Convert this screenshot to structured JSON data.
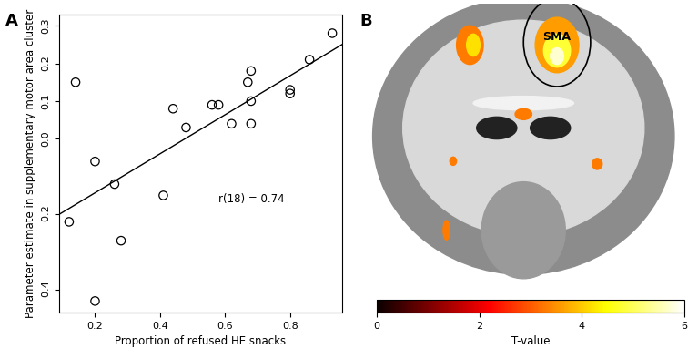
{
  "chart_data": [
    {
      "type": "scatter",
      "panel_label": "A",
      "x_label": "Proportion of refused HE snacks",
      "y_label": "Parameter estimate in supplementary motor area cluster",
      "annotation": "r(18) = 0.74",
      "x": [
        0.12,
        0.14,
        0.2,
        0.2,
        0.26,
        0.28,
        0.41,
        0.44,
        0.48,
        0.56,
        0.58,
        0.62,
        0.67,
        0.68,
        0.68,
        0.68,
        0.8,
        0.8,
        0.86,
        0.93
      ],
      "values": [
        -0.22,
        0.15,
        -0.06,
        -0.43,
        -0.12,
        -0.27,
        -0.15,
        0.08,
        0.03,
        0.09,
        0.09,
        0.04,
        0.15,
        0.18,
        0.1,
        0.04,
        0.13,
        0.12,
        0.21,
        0.28
      ],
      "fit_line": {
        "x": [
          0.09,
          0.96
        ],
        "y": [
          -0.2,
          0.25
        ]
      },
      "marker": "o",
      "color": "#000000",
      "xlim": [
        0.09,
        0.96
      ],
      "ylim": [
        -0.46,
        0.33
      ],
      "xticks": [
        0.2,
        0.4,
        0.6,
        0.8
      ],
      "yticks": [
        -0.4,
        -0.2,
        0.0,
        0.1,
        0.2,
        0.3
      ]
    },
    {
      "type": "brain_map",
      "panel_label": "B",
      "annotation": "SMA",
      "colorbar": {
        "label": "T-value",
        "range": [
          0,
          6
        ],
        "ticks": [
          0,
          2,
          4,
          6
        ]
      }
    }
  ]
}
